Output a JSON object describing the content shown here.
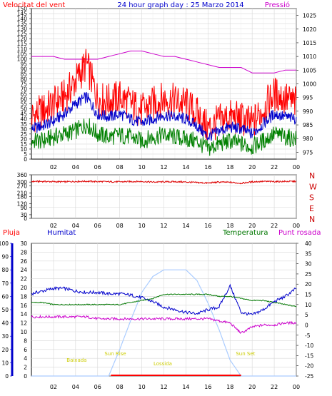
{
  "chart_data": [
    {
      "type": "line",
      "title": "24 hour graph day : 25 Marzo 2014",
      "left_axis_label": "Velocitat del vent",
      "right_axis_label": "Pressió",
      "left_ticks": [
        0,
        5,
        10,
        15,
        20,
        25,
        30,
        35,
        40,
        45,
        50,
        55,
        60,
        65,
        70,
        75,
        80,
        85,
        90,
        95,
        100,
        105,
        110,
        115,
        120,
        125,
        130,
        135,
        140,
        145,
        150
      ],
      "right_ticks": [
        975,
        980,
        985,
        990,
        995,
        1000,
        1005,
        1010,
        1015,
        1020,
        1025
      ],
      "x_ticks": [
        "02",
        "04",
        "06",
        "08",
        "10",
        "12",
        "14",
        "16",
        "18",
        "20",
        "22",
        "00"
      ],
      "ylim_left": [
        0,
        150
      ],
      "ylim_right": [
        972.5,
        1027.5
      ],
      "x_hours": [
        0,
        1,
        2,
        3,
        4,
        5,
        6,
        7,
        8,
        9,
        10,
        11,
        12,
        13,
        14,
        15,
        16,
        17,
        18,
        19,
        20,
        21,
        22,
        23,
        24
      ],
      "series": [
        {
          "name": "Pressió",
          "axis": "right",
          "color": "#cc00cc",
          "values": [
            1010,
            1010,
            1010,
            1009,
            1009,
            1009,
            1009,
            1010,
            1011,
            1012,
            1012,
            1011,
            1010,
            1010,
            1009,
            1008,
            1007,
            1006,
            1006,
            1006,
            1004,
            1004,
            1004,
            1005,
            1005
          ]
        },
        {
          "name": "Velocitat del vent",
          "axis": "left",
          "color": "#ff0000",
          "values": [
            42,
            48,
            55,
            62,
            78,
            95,
            60,
            58,
            62,
            55,
            48,
            55,
            60,
            58,
            55,
            45,
            30,
            38,
            42,
            40,
            35,
            50,
            65,
            60,
            55
          ]
        },
        {
          "name": "",
          "axis": "left",
          "color": "#0000cc",
          "values": [
            30,
            33,
            38,
            45,
            55,
            62,
            45,
            42,
            45,
            40,
            36,
            40,
            44,
            42,
            40,
            33,
            22,
            28,
            32,
            30,
            25,
            35,
            45,
            42,
            40
          ]
        },
        {
          "name": "",
          "axis": "left",
          "color": "#008000",
          "values": [
            18,
            18,
            22,
            25,
            28,
            35,
            25,
            22,
            24,
            22,
            18,
            22,
            24,
            22,
            20,
            18,
            10,
            15,
            18,
            15,
            12,
            18,
            25,
            22,
            20
          ]
        }
      ]
    },
    {
      "type": "line",
      "title": "",
      "left_ticks": [
        0,
        30,
        90,
        120,
        180,
        210,
        270,
        300,
        360
      ],
      "right_labels": [
        "N",
        "W",
        "S",
        "E",
        "N"
      ],
      "x_ticks": [
        "02",
        "04",
        "06",
        "08",
        "10",
        "12",
        "14",
        "16",
        "18",
        "20",
        "22",
        "00"
      ],
      "ylim": [
        0,
        360
      ],
      "x_hours": [
        0,
        1,
        2,
        3,
        4,
        5,
        6,
        7,
        8,
        9,
        10,
        11,
        12,
        13,
        14,
        15,
        16,
        17,
        18,
        19,
        20,
        21,
        22,
        23,
        24
      ],
      "series": [
        {
          "name": "",
          "color": "#dd0000",
          "values": [
            305,
            305,
            303,
            302,
            305,
            306,
            304,
            303,
            302,
            304,
            305,
            300,
            302,
            303,
            300,
            296,
            292,
            300,
            298,
            290,
            302,
            305,
            304,
            305,
            306
          ]
        }
      ]
    },
    {
      "type": "line",
      "title": "",
      "label_rain": "Pluja",
      "label_humidity": "Humitat",
      "label_temperature": "Temperatura",
      "label_dewpoint": "Punt rosada",
      "rain_ticks": [
        0,
        10,
        20,
        30,
        40,
        50,
        60,
        70,
        80,
        90,
        100
      ],
      "humidity_ticks": [
        0,
        2,
        4,
        6,
        8,
        10,
        12,
        14,
        16,
        18,
        20,
        22,
        24,
        26,
        28,
        30
      ],
      "temperature_ticks": [
        40,
        35,
        30,
        25,
        20,
        15,
        10,
        5,
        0,
        -5,
        -10,
        -15,
        -20,
        -25
      ],
      "x_ticks": [
        "02",
        "04",
        "06",
        "08",
        "10",
        "12",
        "14",
        "16",
        "18",
        "20",
        "22",
        "00"
      ],
      "annotations": [
        "Baixada",
        "Sun Rise",
        "Lossida",
        "Sun Set"
      ],
      "ylim_temp": [
        -25,
        40
      ],
      "ylim_rain": [
        0,
        100
      ],
      "x_hours": [
        0,
        1,
        2,
        3,
        4,
        5,
        6,
        7,
        8,
        9,
        10,
        11,
        12,
        13,
        14,
        15,
        16,
        17,
        18,
        19,
        20,
        21,
        22,
        23,
        24
      ],
      "series": [
        {
          "name": "Humitat",
          "axis": "rain",
          "color": "#0000cc",
          "values": [
            62,
            64,
            66,
            66,
            64,
            63,
            63,
            62,
            62,
            61,
            59,
            56,
            52,
            50,
            48,
            47,
            50,
            52,
            68,
            48,
            46,
            50,
            56,
            60,
            66
          ]
        },
        {
          "name": "Temperatura",
          "axis": "temp",
          "color": "#007700",
          "values": [
            11,
            11,
            10,
            10,
            10,
            10,
            10,
            10,
            10,
            11,
            12,
            13,
            15,
            15,
            15,
            15,
            15,
            14,
            14,
            13,
            12,
            12,
            11,
            10,
            9
          ]
        },
        {
          "name": "Punt rosada",
          "axis": "temp",
          "color": "#cc00cc",
          "values": [
            4,
            4,
            4,
            4,
            4,
            4,
            3,
            3,
            3,
            3,
            3,
            3,
            3,
            3,
            3,
            3,
            3,
            2,
            1,
            -4,
            -1,
            0,
            0,
            1,
            1
          ]
        },
        {
          "name": "",
          "axis": "rain",
          "color": "#aaccff",
          "values": [
            0,
            0,
            0,
            0,
            0,
            0,
            0,
            0,
            20,
            42,
            63,
            75,
            80,
            80,
            80,
            72,
            55,
            35,
            12,
            0,
            0,
            0,
            0,
            0,
            0
          ]
        }
      ]
    }
  ]
}
